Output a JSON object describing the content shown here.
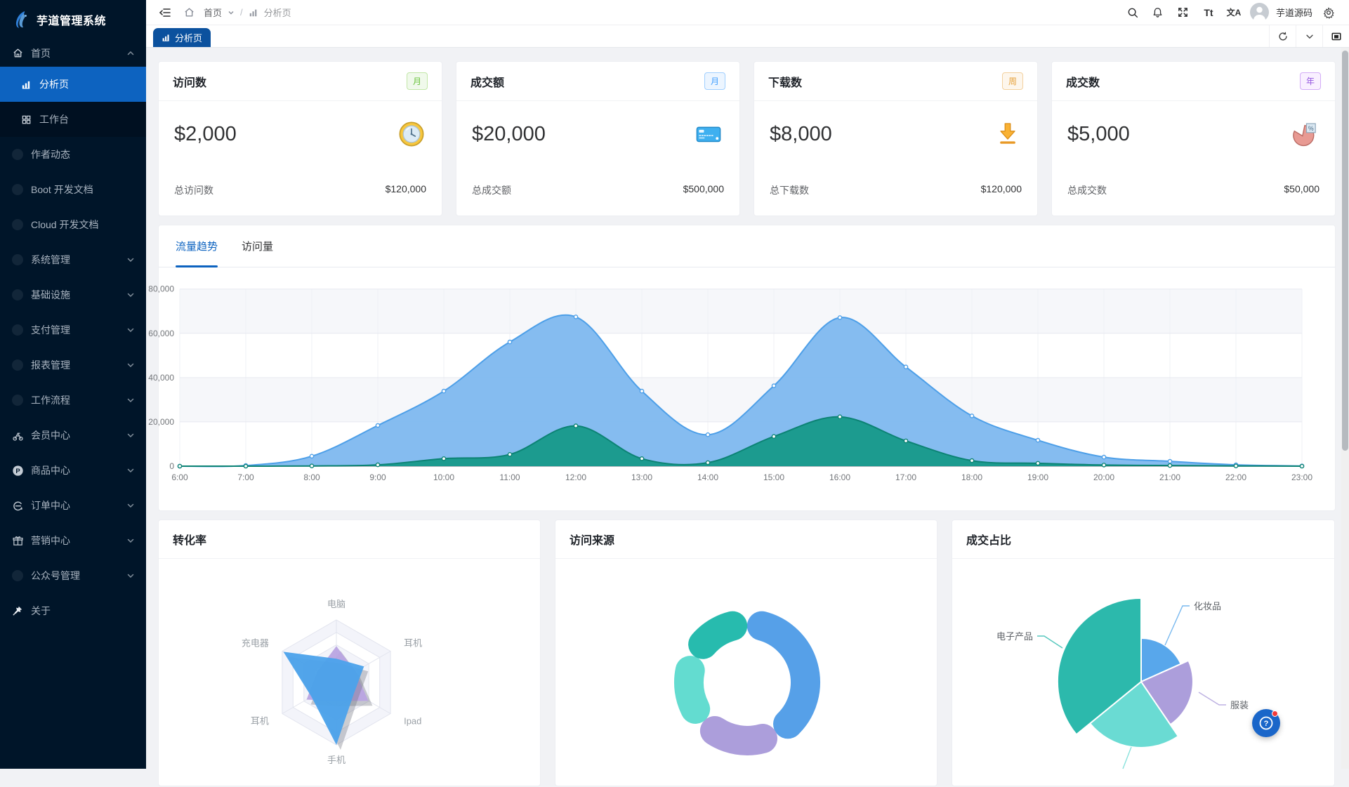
{
  "app": {
    "title": "芋道管理系统"
  },
  "colors": {
    "primary": "#0D63C0",
    "tab_active": "#0B519E",
    "sidebar_bg": "#001529",
    "submenu_bg": "#001021",
    "content_bg": "#F1F2F5"
  },
  "sidebar": {
    "logo_title": "芋道管理系统",
    "items": [
      {
        "label": "首页",
        "icon": "home-icon",
        "chevron": "up",
        "root": true
      },
      {
        "label": "分析页",
        "icon": "chart-icon",
        "sub": true,
        "active": true
      },
      {
        "label": "工作台",
        "icon": "grid-icon",
        "sub": true
      },
      {
        "label": "作者动态",
        "icon": "dot-icon"
      },
      {
        "label": "Boot 开发文档",
        "icon": "dot-icon"
      },
      {
        "label": "Cloud 开发文档",
        "icon": "dot-icon"
      },
      {
        "label": "系统管理",
        "icon": "dot-icon",
        "chevron": "down"
      },
      {
        "label": "基础设施",
        "icon": "dot-icon",
        "chevron": "down"
      },
      {
        "label": "支付管理",
        "icon": "dot-icon",
        "chevron": "down"
      },
      {
        "label": "报表管理",
        "icon": "dot-icon",
        "chevron": "down"
      },
      {
        "label": "工作流程",
        "icon": "dot-icon",
        "chevron": "down"
      },
      {
        "label": "会员中心",
        "icon": "member-icon",
        "chevron": "down"
      },
      {
        "label": "商品中心",
        "icon": "product-icon",
        "chevron": "down"
      },
      {
        "label": "订单中心",
        "icon": "order-icon",
        "chevron": "down"
      },
      {
        "label": "营销中心",
        "icon": "marketing-icon",
        "chevron": "down"
      },
      {
        "label": "公众号管理",
        "icon": "dot-icon",
        "chevron": "down"
      },
      {
        "label": "关于",
        "icon": "pin-icon"
      }
    ]
  },
  "header": {
    "breadcrumb": {
      "home": "首页",
      "separator": "/",
      "current": "分析页"
    },
    "font_action": "Tt",
    "lang_action": "文A",
    "user": "芋道源码"
  },
  "tabbar": {
    "tabs": [
      {
        "label": "分析页",
        "active": true
      }
    ]
  },
  "stat_cards": [
    {
      "title": "访问数",
      "badge": "月",
      "badge_color": "green",
      "value": "$2,000",
      "icon": "clock-icon",
      "footer_label": "总访问数",
      "footer_value": "$120,000"
    },
    {
      "title": "成交额",
      "badge": "月",
      "badge_color": "blue",
      "value": "$20,000",
      "icon": "card-icon",
      "footer_label": "总成交额",
      "footer_value": "$500,000"
    },
    {
      "title": "下载数",
      "badge": "周",
      "badge_color": "orange",
      "value": "$8,000",
      "icon": "download-icon",
      "footer_label": "总下载数",
      "footer_value": "$120,000"
    },
    {
      "title": "成交数",
      "badge": "年",
      "badge_color": "purple",
      "value": "$5,000",
      "icon": "pie-icon",
      "footer_label": "总成交数",
      "footer_value": "$50,000"
    }
  ],
  "trend": {
    "tabs": [
      {
        "label": "流量趋势",
        "active": true
      },
      {
        "label": "访问量",
        "active": false
      }
    ]
  },
  "chart_data": [
    {
      "id": "traffic-trend",
      "type": "area",
      "title": "流量趋势",
      "x": [
        "6:00",
        "7:00",
        "8:00",
        "9:00",
        "10:00",
        "11:00",
        "12:00",
        "13:00",
        "14:00",
        "15:00",
        "16:00",
        "17:00",
        "18:00",
        "19:00",
        "20:00",
        "21:00",
        "22:00",
        "23:00"
      ],
      "series": [
        {
          "name": "visits-blue",
          "color": "#4D9FE8",
          "fill": "#80B9EF",
          "values": [
            0,
            300,
            4500,
            18400,
            33900,
            56100,
            67400,
            33900,
            14200,
            36300,
            67100,
            44800,
            22700,
            11700,
            4100,
            2200,
            600,
            100
          ]
        },
        {
          "name": "visits-green",
          "color": "#0C8374",
          "fill": "#18998A",
          "values": [
            0,
            0,
            100,
            600,
            3400,
            5300,
            18200,
            3400,
            1600,
            13400,
            22300,
            11400,
            2500,
            1300,
            500,
            300,
            100,
            0
          ]
        }
      ],
      "ylim": [
        0,
        80000
      ],
      "yticks": [
        0,
        20000,
        40000,
        60000,
        80000
      ],
      "grid": true,
      "legend_position": "none"
    },
    {
      "id": "conversion-radar",
      "type": "radar",
      "title": "转化率",
      "axes": [
        "电脑",
        "耳机",
        "Ipad",
        "手机",
        "耳机",
        "充电器"
      ],
      "max": 100,
      "series": [
        {
          "name": "series-purple",
          "color": "#B9A4E2",
          "values": [
            58,
            35,
            59,
            30,
            55,
            35
          ]
        },
        {
          "name": "series-blue",
          "color": "#4BA2EB",
          "values": [
            38,
            51,
            33,
            100,
            46,
            98
          ]
        }
      ],
      "legend_position": "none"
    },
    {
      "id": "visit-source-donut",
      "type": "pie",
      "title": "访问来源",
      "donut": true,
      "slices": [
        {
          "label": "",
          "value": 41.7,
          "color": "#56A0E8"
        },
        {
          "label": "",
          "value": 21.7,
          "color": "#AC9EDB"
        },
        {
          "label": "",
          "value": 18.9,
          "color": "#63DCD0"
        },
        {
          "label": "",
          "value": 17.7,
          "color": "#27BBAE"
        }
      ],
      "legend_position": "none"
    },
    {
      "id": "deal-share-rose",
      "type": "pie",
      "title": "成交占比",
      "rose": true,
      "slices": [
        {
          "label": "化妆品",
          "value": 18.3,
          "radius": 62,
          "color": "#58A7EB"
        },
        {
          "label": "服装",
          "value": 22.2,
          "radius": 74,
          "color": "#AC9EDB"
        },
        {
          "label": "",
          "value": 23.6,
          "radius": 94,
          "color": "#6ADBD3"
        },
        {
          "label": "电子产品",
          "value": 35.9,
          "radius": 119,
          "color": "#2CB9AC"
        }
      ],
      "legend_position": "none"
    }
  ]
}
